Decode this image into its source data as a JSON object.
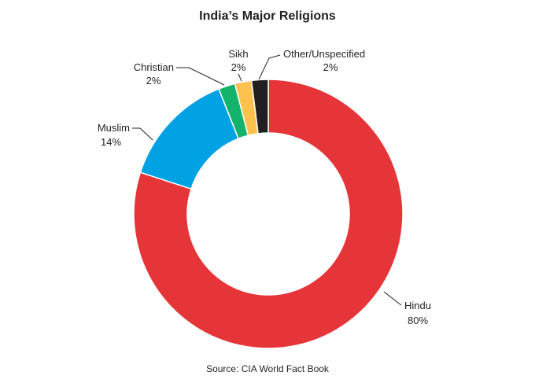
{
  "chart_data": {
    "type": "pie",
    "title": "India’s Major Religions",
    "source": "Source: CIA World Fact Book",
    "slices": [
      {
        "label": "Hindu",
        "value": 80,
        "value_label": "80%",
        "color": "#e53538"
      },
      {
        "label": "Muslim",
        "value": 14,
        "value_label": "14%",
        "color": "#00a2e3"
      },
      {
        "label": "Christian",
        "value": 2,
        "value_label": "2%",
        "color": "#13b36b"
      },
      {
        "label": "Sikh",
        "value": 2,
        "value_label": "2%",
        "color": "#fdc14e"
      },
      {
        "label": "Other/Unspecified",
        "value": 2,
        "value_label": "2%",
        "color": "#231f20"
      }
    ],
    "donut": true,
    "legend": "none"
  }
}
